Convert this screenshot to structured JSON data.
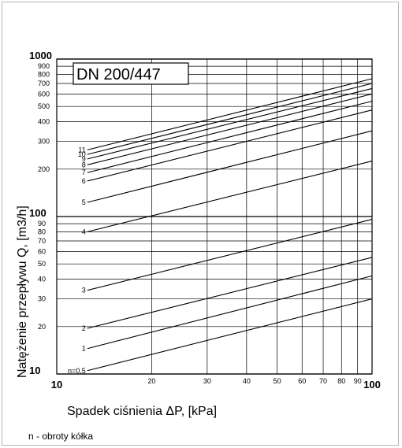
{
  "chart_data": {
    "type": "line",
    "title": "DN 200/447",
    "xlabel": "Spadek ciśnienia ΔP, [kPa]",
    "ylabel": "Natężenie przepływu  Q, [m3/h]",
    "xscale": "log",
    "yscale": "log",
    "xlim": [
      10,
      100
    ],
    "ylim": [
      10,
      1000
    ],
    "grid": true,
    "x_ticks": [
      10,
      20,
      30,
      40,
      50,
      60,
      70,
      80,
      90,
      100
    ],
    "y_ticks": [
      10,
      20,
      30,
      40,
      50,
      60,
      70,
      80,
      90,
      100,
      200,
      300,
      400,
      500,
      600,
      700,
      800,
      900,
      1000
    ],
    "series": [
      {
        "name": "n=0,5",
        "x": [
          12.5,
          100
        ],
        "y": [
          10.5,
          30
        ]
      },
      {
        "name": "1",
        "x": [
          12.5,
          100
        ],
        "y": [
          14.5,
          42
        ]
      },
      {
        "name": "2",
        "x": [
          12.5,
          100
        ],
        "y": [
          19.5,
          55
        ]
      },
      {
        "name": "3",
        "x": [
          12.5,
          100
        ],
        "y": [
          34,
          96
        ]
      },
      {
        "name": "4",
        "x": [
          12.5,
          100
        ],
        "y": [
          80,
          225
        ]
      },
      {
        "name": "5",
        "x": [
          12.5,
          100
        ],
        "y": [
          123,
          350
        ]
      },
      {
        "name": "6",
        "x": [
          12.5,
          100
        ],
        "y": [
          168,
          475
        ]
      },
      {
        "name": "7",
        "x": [
          12.5,
          100
        ],
        "y": [
          190,
          540
        ]
      },
      {
        "name": "8",
        "x": [
          12.5,
          100
        ],
        "y": [
          213,
          600
        ]
      },
      {
        "name": "9",
        "x": [
          12.5,
          100
        ],
        "y": [
          232,
          650
        ]
      },
      {
        "name": "10",
        "x": [
          12.5,
          100
        ],
        "y": [
          248,
          700
        ]
      },
      {
        "name": "11",
        "x": [
          12.5,
          100
        ],
        "y": [
          265,
          750
        ]
      }
    ]
  },
  "footnote": "n - obroty kółka"
}
